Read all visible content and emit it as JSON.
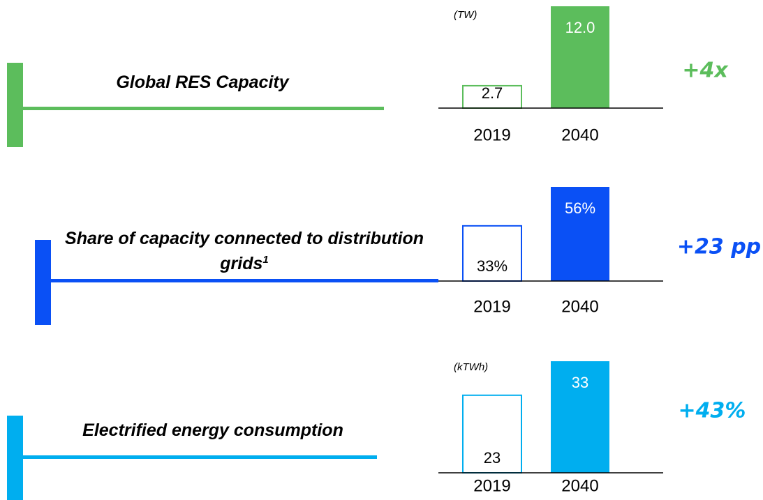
{
  "chart_data": [
    {
      "type": "bar",
      "title": "Global RES Capacity",
      "unit": "(TW)",
      "categories": [
        "2019",
        "2040"
      ],
      "values": [
        2.7,
        12.0
      ],
      "value_labels": [
        "2.7",
        "12.0"
      ],
      "annotation": "+4x",
      "color": "#5cbd5c"
    },
    {
      "type": "bar",
      "title": "Share of capacity connected to distribution grids",
      "title_note": "1",
      "categories": [
        "2019",
        "2040"
      ],
      "values": [
        33,
        56
      ],
      "value_labels": [
        "33%",
        "56%"
      ],
      "annotation": "+23 pp",
      "color": "#0a50f5"
    },
    {
      "type": "bar",
      "title": "Electrified energy consumption",
      "unit": "(kTWh)",
      "categories": [
        "2019",
        "2040"
      ],
      "values": [
        23,
        33
      ],
      "annotation": "+43%",
      "color": "#00aeef"
    }
  ]
}
